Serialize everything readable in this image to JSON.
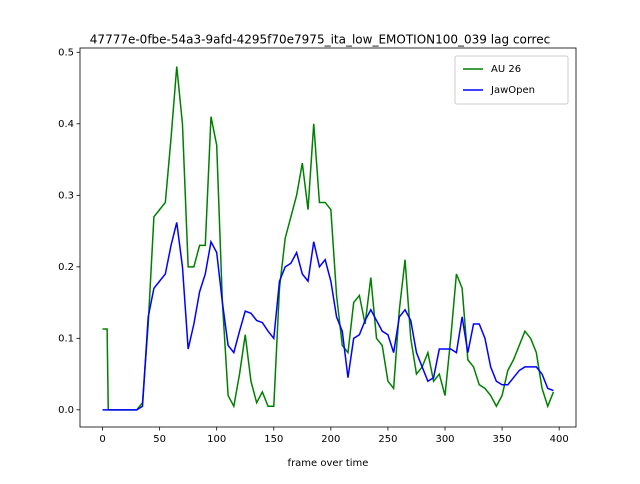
{
  "chart_data": {
    "type": "line",
    "title": "47777e-0fbe-54a3-9afd-4295f70e7975_ita_low_EMOTION100_039  lag correc",
    "xlabel": "frame over time",
    "x": [
      0,
      4,
      5,
      10,
      15,
      20,
      25,
      30,
      35,
      40,
      45,
      50,
      55,
      60,
      65,
      70,
      75,
      80,
      85,
      90,
      95,
      100,
      105,
      110,
      115,
      120,
      125,
      130,
      135,
      140,
      145,
      150,
      155,
      160,
      165,
      170,
      175,
      180,
      185,
      190,
      195,
      200,
      205,
      210,
      215,
      220,
      225,
      230,
      235,
      240,
      245,
      250,
      255,
      260,
      265,
      270,
      275,
      280,
      285,
      290,
      295,
      300,
      305,
      310,
      315,
      320,
      325,
      330,
      335,
      340,
      345,
      350,
      355,
      360,
      365,
      370,
      375,
      380,
      385,
      390,
      395
    ],
    "series": [
      {
        "name": "AU 26",
        "color": "#008000",
        "values": [
          0.113,
          0.113,
          0,
          0,
          0,
          0,
          0,
          0,
          0.01,
          0.12,
          0.27,
          0.28,
          0.29,
          0.38,
          0.48,
          0.4,
          0.2,
          0.2,
          0.23,
          0.23,
          0.41,
          0.37,
          0.15,
          0.02,
          0.005,
          0.05,
          0.105,
          0.04,
          0.01,
          0.025,
          0.005,
          0.005,
          0.17,
          0.24,
          0.27,
          0.3,
          0.345,
          0.28,
          0.4,
          0.29,
          0.29,
          0.28,
          0.16,
          0.09,
          0.08,
          0.15,
          0.16,
          0.12,
          0.185,
          0.1,
          0.09,
          0.04,
          0.03,
          0.14,
          0.21,
          0.1,
          0.05,
          0.06,
          0.08,
          0.04,
          0.05,
          0.02,
          0.1,
          0.19,
          0.17,
          0.07,
          0.06,
          0.035,
          0.03,
          0.02,
          0.005,
          0.02,
          0.055,
          0.07,
          0.09,
          0.11,
          0.1,
          0.08,
          0.03,
          0.005,
          0.025
        ]
      },
      {
        "name": "JawOpen",
        "color": "#0000ff",
        "values": [
          0,
          0,
          0,
          0,
          0,
          0,
          0,
          0,
          0.005,
          0.13,
          0.17,
          0.18,
          0.19,
          0.23,
          0.262,
          0.2,
          0.085,
          0.12,
          0.165,
          0.19,
          0.235,
          0.22,
          0.15,
          0.09,
          0.08,
          0.11,
          0.138,
          0.135,
          0.125,
          0.122,
          0.11,
          0.1,
          0.18,
          0.2,
          0.205,
          0.22,
          0.19,
          0.18,
          0.235,
          0.2,
          0.21,
          0.18,
          0.13,
          0.11,
          0.045,
          0.1,
          0.105,
          0.125,
          0.14,
          0.125,
          0.11,
          0.105,
          0.08,
          0.13,
          0.14,
          0.125,
          0.08,
          0.06,
          0.04,
          0.045,
          0.085,
          0.085,
          0.085,
          0.08,
          0.13,
          0.08,
          0.12,
          0.12,
          0.1,
          0.06,
          0.04,
          0.035,
          0.035,
          0.045,
          0.055,
          0.06,
          0.06,
          0.06,
          0.05,
          0.03,
          0.027
        ]
      }
    ],
    "xlim": [
      -19.75,
      414.75
    ],
    "xticks": [
      0,
      50,
      100,
      150,
      200,
      250,
      300,
      350,
      400
    ],
    "ylim": [
      -0.024,
      0.506
    ],
    "yticks": [
      {
        "value": 0,
        "label": "0.0"
      },
      0.1,
      0.2,
      0.3,
      0.4,
      0.5
    ],
    "legend": "upper right"
  }
}
